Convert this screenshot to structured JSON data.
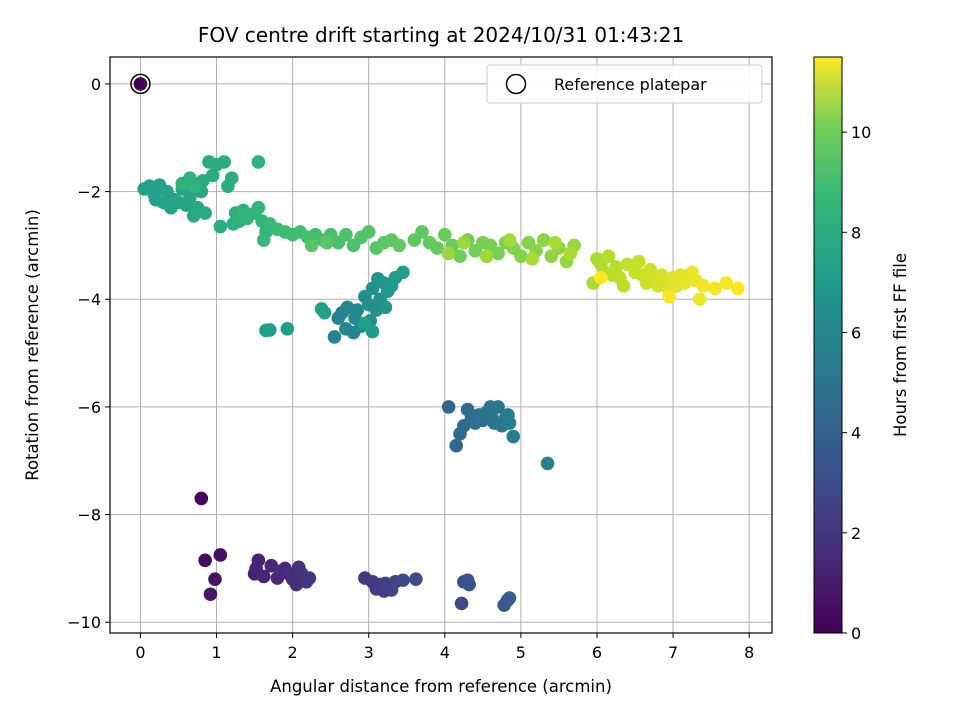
{
  "chart_data": {
    "type": "scatter",
    "title": "FOV centre drift starting at 2024/10/31 01:43:21",
    "xlabel": "Angular distance from reference (arcmin)",
    "ylabel": "Rotation from reference (arcmin)",
    "xlim": [
      -0.4,
      8.3
    ],
    "ylim": [
      -10.2,
      0.5
    ],
    "xticks": [
      0,
      1,
      2,
      3,
      4,
      5,
      6,
      7,
      8
    ],
    "yticks": [
      0,
      -2,
      -4,
      -6,
      -8,
      -10
    ],
    "grid": true,
    "colormap": "viridis",
    "colorbar": {
      "label": "Hours from first FF file",
      "range": [
        0,
        11.5
      ],
      "ticks": [
        0,
        2,
        4,
        6,
        8,
        10
      ]
    },
    "legend": {
      "position": "top-right",
      "entries": [
        "Reference platepar"
      ]
    },
    "reference_point": {
      "x": 0,
      "y": 0,
      "hours": 0
    },
    "clusters": [
      {
        "hours": [
          0.2,
          0.7
        ],
        "points": [
          [
            0.8,
            -7.7
          ],
          [
            0.85,
            -8.85
          ],
          [
            1.05,
            -8.75
          ],
          [
            0.98,
            -9.2
          ],
          [
            0.92,
            -9.48
          ]
        ]
      },
      {
        "hours": [
          1.0,
          1.8
        ],
        "points": [
          [
            1.5,
            -9.1
          ],
          [
            1.55,
            -8.85
          ],
          [
            1.52,
            -9.0
          ],
          [
            1.62,
            -9.15
          ],
          [
            1.72,
            -8.95
          ],
          [
            1.8,
            -9.18
          ],
          [
            1.85,
            -9.05
          ],
          [
            1.9,
            -9.0
          ],
          [
            1.95,
            -9.1
          ],
          [
            2.0,
            -9.2
          ],
          [
            2.05,
            -9.3
          ],
          [
            2.08,
            -8.98
          ],
          [
            2.12,
            -9.1
          ],
          [
            2.18,
            -9.25
          ],
          [
            2.22,
            -9.18
          ]
        ]
      },
      {
        "hours": [
          1.8,
          2.6
        ],
        "points": [
          [
            2.95,
            -9.18
          ],
          [
            3.05,
            -9.25
          ],
          [
            3.1,
            -9.38
          ],
          [
            3.15,
            -9.3
          ],
          [
            3.2,
            -9.42
          ],
          [
            3.22,
            -9.28
          ],
          [
            3.3,
            -9.4
          ],
          [
            3.35,
            -9.25
          ],
          [
            3.45,
            -9.22
          ],
          [
            3.62,
            -9.2
          ]
        ]
      },
      {
        "hours": [
          2.6,
          3.4
        ],
        "points": [
          [
            4.22,
            -9.65
          ],
          [
            4.25,
            -9.25
          ],
          [
            4.3,
            -9.22
          ],
          [
            4.32,
            -9.3
          ],
          [
            4.78,
            -9.68
          ],
          [
            4.82,
            -9.6
          ],
          [
            4.85,
            -9.55
          ]
        ]
      },
      {
        "hours": [
          3.8,
          5.0
        ],
        "points": [
          [
            4.05,
            -6.0
          ],
          [
            4.15,
            -6.72
          ],
          [
            4.2,
            -6.5
          ],
          [
            4.25,
            -6.35
          ],
          [
            4.3,
            -6.05
          ],
          [
            4.35,
            -6.2
          ],
          [
            4.4,
            -6.3
          ],
          [
            4.45,
            -6.15
          ],
          [
            4.5,
            -6.25
          ],
          [
            4.55,
            -6.1
          ],
          [
            4.6,
            -6.0
          ],
          [
            4.62,
            -6.2
          ],
          [
            4.65,
            -6.3
          ],
          [
            4.7,
            -6.0
          ],
          [
            4.75,
            -6.35
          ],
          [
            4.8,
            -6.2
          ],
          [
            4.83,
            -6.15
          ],
          [
            4.85,
            -6.3
          ],
          [
            4.9,
            -6.55
          ],
          [
            5.35,
            -7.05
          ]
        ]
      },
      {
        "hours": [
          5.0,
          6.6
        ],
        "points": [
          [
            2.55,
            -4.7
          ],
          [
            2.6,
            -4.35
          ],
          [
            2.65,
            -4.25
          ],
          [
            2.7,
            -4.55
          ],
          [
            2.72,
            -4.15
          ],
          [
            2.8,
            -4.62
          ],
          [
            2.82,
            -4.35
          ],
          [
            2.85,
            -4.2
          ],
          [
            2.9,
            -4.5
          ],
          [
            2.95,
            -3.95
          ],
          [
            3.0,
            -4.1
          ],
          [
            3.02,
            -4.4
          ],
          [
            3.05,
            -3.8
          ],
          [
            3.1,
            -4.2
          ],
          [
            3.12,
            -3.62
          ],
          [
            3.15,
            -4.0
          ],
          [
            3.2,
            -3.7
          ],
          [
            3.22,
            -4.15
          ],
          [
            3.25,
            -3.85
          ],
          [
            3.3,
            -3.75
          ],
          [
            3.35,
            -3.6
          ],
          [
            3.05,
            -4.6
          ],
          [
            2.95,
            -4.45
          ],
          [
            3.45,
            -3.5
          ],
          [
            2.42,
            -4.25
          ],
          [
            2.38,
            -4.18
          ]
        ]
      },
      {
        "hours": [
          6.4,
          7.4
        ],
        "points": [
          [
            1.65,
            -4.58
          ],
          [
            1.7,
            -4.57
          ],
          [
            1.93,
            -4.55
          ],
          [
            0.05,
            -1.95
          ],
          [
            0.12,
            -1.9
          ],
          [
            0.18,
            -2.05
          ],
          [
            0.2,
            -2.15
          ],
          [
            0.25,
            -1.88
          ],
          [
            0.3,
            -2.2
          ],
          [
            0.35,
            -2.0
          ],
          [
            0.4,
            -2.3
          ],
          [
            0.45,
            -2.15
          ],
          [
            0.5,
            -2.2
          ],
          [
            0.55,
            -1.95
          ],
          [
            0.6,
            -2.25
          ],
          [
            0.65,
            -2.1
          ],
          [
            0.7,
            -2.45
          ],
          [
            0.75,
            -2.3
          ],
          [
            0.8,
            -2.0
          ],
          [
            0.82,
            -1.8
          ],
          [
            0.85,
            -2.4
          ],
          [
            0.9,
            -1.45
          ],
          [
            0.95,
            -1.7
          ],
          [
            1.0,
            -1.5
          ],
          [
            1.05,
            -2.65
          ],
          [
            1.1,
            -1.45
          ],
          [
            1.15,
            -1.9
          ],
          [
            1.2,
            -1.75
          ],
          [
            1.22,
            -2.6
          ],
          [
            1.25,
            -2.4
          ],
          [
            0.55,
            -1.85
          ],
          [
            0.65,
            -1.75
          ],
          [
            0.72,
            -1.9
          ],
          [
            1.55,
            -1.45
          ]
        ]
      },
      {
        "hours": [
          7.4,
          8.6
        ],
        "points": [
          [
            1.3,
            -2.55
          ],
          [
            1.35,
            -2.35
          ],
          [
            1.4,
            -2.5
          ],
          [
            1.5,
            -2.4
          ],
          [
            1.55,
            -2.3
          ],
          [
            1.6,
            -2.55
          ],
          [
            1.65,
            -2.75
          ],
          [
            1.62,
            -2.9
          ],
          [
            1.7,
            -2.6
          ],
          [
            1.8,
            -2.7
          ],
          [
            1.9,
            -2.75
          ],
          [
            2.0,
            -2.8
          ],
          [
            2.1,
            -2.75
          ],
          [
            2.2,
            -2.85
          ],
          [
            2.3,
            -2.8
          ],
          [
            2.4,
            -2.9
          ],
          [
            2.5,
            -2.8
          ],
          [
            2.6,
            -2.95
          ],
          [
            2.7,
            -2.8
          ],
          [
            2.8,
            -3.0
          ],
          [
            2.9,
            -2.85
          ],
          [
            3.0,
            -2.75
          ],
          [
            3.1,
            -3.05
          ],
          [
            2.25,
            -3.0
          ],
          [
            2.45,
            -2.95
          ],
          [
            3.2,
            -2.95
          ],
          [
            3.3,
            -2.9
          ],
          [
            3.4,
            -3.0
          ]
        ]
      },
      {
        "hours": [
          8.6,
          10.0
        ],
        "points": [
          [
            3.6,
            -2.9
          ],
          [
            3.7,
            -2.75
          ],
          [
            3.8,
            -2.95
          ],
          [
            3.9,
            -3.05
          ],
          [
            4.0,
            -2.8
          ],
          [
            4.1,
            -3.0
          ],
          [
            4.2,
            -3.2
          ],
          [
            4.3,
            -2.9
          ],
          [
            4.4,
            -3.1
          ],
          [
            4.5,
            -2.95
          ],
          [
            4.6,
            -3.0
          ],
          [
            4.7,
            -3.15
          ],
          [
            4.8,
            -2.95
          ],
          [
            4.9,
            -3.05
          ],
          [
            5.0,
            -3.2
          ],
          [
            5.1,
            -2.95
          ],
          [
            5.2,
            -3.1
          ],
          [
            5.3,
            -2.9
          ],
          [
            5.4,
            -3.2
          ],
          [
            5.5,
            -3.05
          ],
          [
            5.6,
            -3.3
          ],
          [
            5.7,
            -3.0
          ],
          [
            4.05,
            -3.15
          ],
          [
            4.25,
            -2.95
          ],
          [
            4.55,
            -3.2
          ],
          [
            4.85,
            -2.9
          ],
          [
            5.15,
            -3.25
          ],
          [
            5.45,
            -2.95
          ],
          [
            5.65,
            -3.15
          ]
        ]
      },
      {
        "hours": [
          10.0,
          11.5
        ],
        "points": [
          [
            5.95,
            -3.7
          ],
          [
            6.0,
            -3.25
          ],
          [
            6.05,
            -3.35
          ],
          [
            6.1,
            -3.5
          ],
          [
            6.15,
            -3.2
          ],
          [
            6.2,
            -3.55
          ],
          [
            6.25,
            -3.4
          ],
          [
            6.3,
            -3.6
          ],
          [
            6.35,
            -3.75
          ],
          [
            6.4,
            -3.35
          ],
          [
            6.5,
            -3.5
          ],
          [
            6.55,
            -3.3
          ],
          [
            6.6,
            -3.55
          ],
          [
            6.65,
            -3.7
          ],
          [
            6.7,
            -3.45
          ],
          [
            6.75,
            -3.6
          ],
          [
            6.8,
            -3.75
          ],
          [
            6.85,
            -3.55
          ],
          [
            6.9,
            -3.65
          ],
          [
            6.95,
            -3.85
          ],
          [
            7.0,
            -3.6
          ],
          [
            7.05,
            -3.75
          ],
          [
            7.1,
            -3.55
          ],
          [
            7.15,
            -3.7
          ],
          [
            7.25,
            -3.5
          ],
          [
            7.3,
            -3.65
          ],
          [
            7.35,
            -4.0
          ],
          [
            7.4,
            -3.75
          ],
          [
            7.55,
            -3.8
          ],
          [
            7.7,
            -3.7
          ],
          [
            7.85,
            -3.8
          ],
          [
            6.95,
            -3.95
          ],
          [
            6.05,
            -3.6
          ]
        ]
      }
    ]
  }
}
